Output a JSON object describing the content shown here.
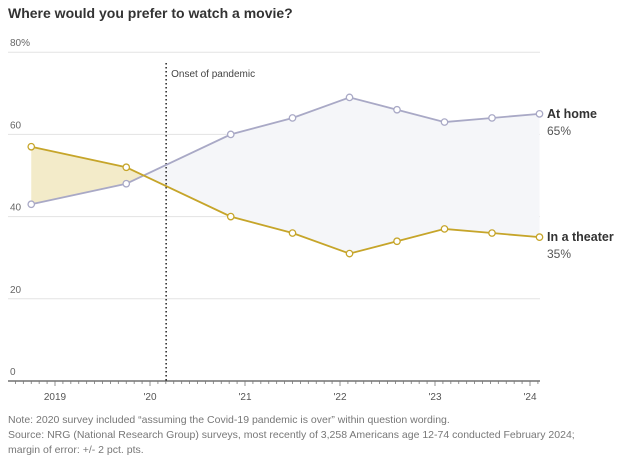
{
  "chart_data": {
    "type": "line",
    "title": "Where would you prefer to watch a movie?",
    "xlabel": "",
    "ylabel": "",
    "ylim": [
      0,
      80
    ],
    "yticks": [
      0,
      20,
      40,
      60,
      80
    ],
    "ytick_labels": [
      "0",
      "20",
      "40",
      "60",
      "80%"
    ],
    "xlim": [
      2018.6,
      2024.2
    ],
    "xticks": [
      2019,
      2020,
      2021,
      2022,
      2023,
      2024
    ],
    "xtick_labels": [
      "2019",
      "'20",
      "'21",
      "'22",
      "'23",
      "'24"
    ],
    "grid": true,
    "x": [
      2018.75,
      2019.75,
      2020.85,
      2021.5,
      2022.1,
      2022.6,
      2023.1,
      2023.6,
      2024.1
    ],
    "series": [
      {
        "name": "At home",
        "end_label": "65%",
        "color": "#a9a9c6",
        "values": [
          43,
          48,
          60,
          64,
          69,
          66,
          63,
          64,
          65
        ]
      },
      {
        "name": "In a theater",
        "end_label": "35%",
        "color": "#c6a52a",
        "values": [
          57,
          52,
          40,
          36,
          31,
          34,
          37,
          36,
          35
        ]
      }
    ],
    "fills": {
      "theater_ahead": "#f3ebc9",
      "home_ahead": "#f5f6f9"
    },
    "annotation": {
      "x": 2020.17,
      "label": "Onset of pandemic"
    }
  },
  "notes": {
    "line1": "Note: 2020 survey included “assuming the Covid-19 pandemic is over” within question wording.",
    "line2": "Source: NRG (National Research Group) surveys, most recently of 3,258 Americans age 12-74 conducted February 2024;",
    "line3": "margin of error: +/- 2 pct. pts."
  }
}
